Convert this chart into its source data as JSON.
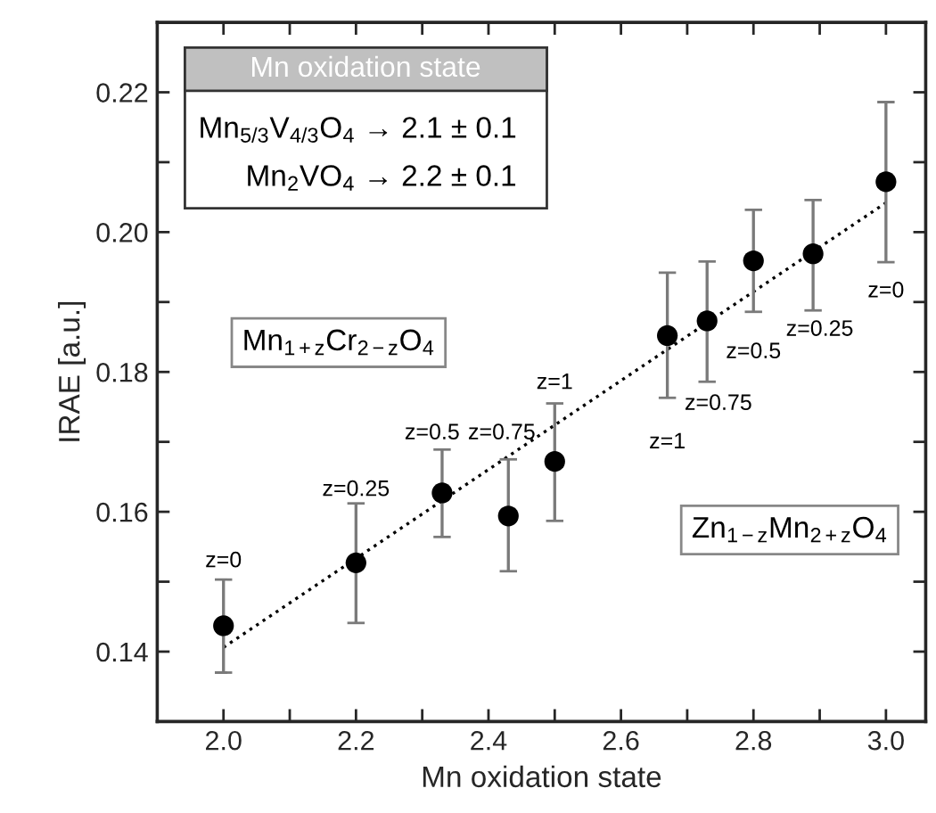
{
  "chart_data": {
    "type": "scatter",
    "xlabel": "Mn oxidation state",
    "ylabel": "IRAE [a.u.]",
    "xlim": [
      1.9,
      3.06
    ],
    "ylim": [
      0.13,
      0.23
    ],
    "xticks": [
      {
        "value": 2.0,
        "label": "2.0"
      },
      {
        "value": 2.1,
        "label": null
      },
      {
        "value": 2.2,
        "label": "2.2"
      },
      {
        "value": 2.3,
        "label": null
      },
      {
        "value": 2.4,
        "label": "2.4"
      },
      {
        "value": 2.5,
        "label": null
      },
      {
        "value": 2.6,
        "label": "2.6"
      },
      {
        "value": 2.7,
        "label": null
      },
      {
        "value": 2.8,
        "label": "2.8"
      },
      {
        "value": 2.9,
        "label": null
      },
      {
        "value": 3.0,
        "label": "3.0"
      }
    ],
    "yticks": [
      {
        "value": 0.13,
        "label": null
      },
      {
        "value": 0.14,
        "label": "0.14"
      },
      {
        "value": 0.15,
        "label": null
      },
      {
        "value": 0.16,
        "label": "0.16"
      },
      {
        "value": 0.17,
        "label": null
      },
      {
        "value": 0.18,
        "label": "0.18"
      },
      {
        "value": 0.19,
        "label": null
      },
      {
        "value": 0.2,
        "label": "0.20"
      },
      {
        "value": 0.21,
        "label": null
      },
      {
        "value": 0.22,
        "label": "0.22"
      }
    ],
    "marker": "circle",
    "grid": false,
    "legend": false,
    "series": [
      {
        "color": "#000000",
        "x": [
          2.0,
          2.2,
          2.33,
          2.43,
          2.5,
          2.67,
          2.73,
          2.8,
          2.89,
          3.0
        ],
        "values": [
          0.1437,
          0.1527,
          0.1627,
          0.1594,
          0.1672,
          0.1852,
          0.1873,
          0.1959,
          0.1969,
          0.2072
        ],
        "errors": [
          [
            0.137,
            0.1503
          ],
          [
            0.1441,
            0.1612
          ],
          [
            0.1564,
            0.1689
          ],
          [
            0.1515,
            0.1675
          ],
          [
            0.1587,
            0.1755
          ],
          [
            0.1763,
            0.1942
          ],
          [
            0.1786,
            0.1958
          ],
          [
            0.1886,
            0.2032
          ],
          [
            0.1888,
            0.2046
          ],
          [
            0.1957,
            0.2186
          ]
        ]
      },
      {
        "type": "line",
        "color": "#000000",
        "line_style": "dotted",
        "marker": "none",
        "x": [
          2.0,
          3.0
        ],
        "values": [
          0.1406,
          0.2042
        ]
      }
    ],
    "annotations": [
      "Mn oxidation state",
      "Mn$_{5/3}$V$_{4/3}$O$_{4}$ → 2.1 ± 0.1",
      "Mn$_{2}$VO$_{4}$ → 2.2 ± 0.1",
      "Mn$_{1+z}$Cr$_{2−z}$O$_{4}$",
      "Zn$_{1−z}$Mn$_{2+z}$O$_{4}$",
      "z=0",
      "z=0.25",
      "z=0.5",
      "z=0.75",
      "z=1",
      "z=1",
      "z=0.75",
      "z=0.5",
      "z=0.25",
      "z=0"
    ]
  }
}
